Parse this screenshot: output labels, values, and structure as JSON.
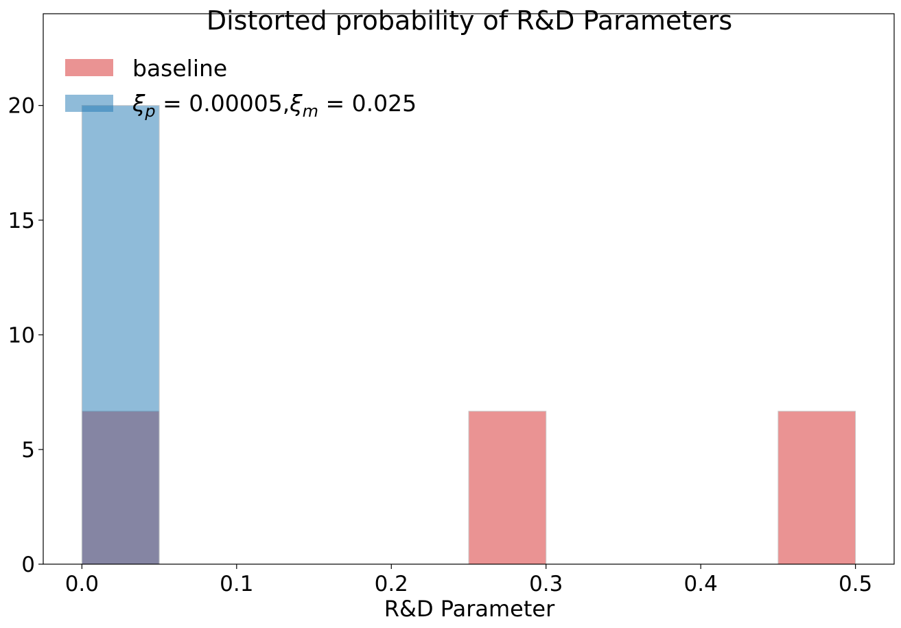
{
  "chart_data": {
    "type": "bar",
    "title": "Distorted probability of R&D Parameters",
    "xlabel": "R&D Parameter",
    "ylabel": "",
    "xlim": [
      -0.025,
      0.525
    ],
    "ylim": [
      0,
      24
    ],
    "grid": false,
    "legend_position": "top-left",
    "x_ticks": [
      {
        "value": 0.0,
        "label": "0.0"
      },
      {
        "value": 0.1,
        "label": "0.1"
      },
      {
        "value": 0.2,
        "label": "0.2"
      },
      {
        "value": 0.3,
        "label": "0.3"
      },
      {
        "value": 0.4,
        "label": "0.4"
      },
      {
        "value": 0.5,
        "label": "0.5"
      }
    ],
    "y_ticks": [
      {
        "value": 0,
        "label": "0"
      },
      {
        "value": 5,
        "label": "5"
      },
      {
        "value": 10,
        "label": "10"
      },
      {
        "value": 15,
        "label": "15"
      },
      {
        "value": 20,
        "label": "20"
      }
    ],
    "series": [
      {
        "name": "baseline",
        "color": "#d62728",
        "opacity": 0.5,
        "bins": [
          {
            "x0": 0.0,
            "x1": 0.05,
            "value": 6.67
          },
          {
            "x0": 0.25,
            "x1": 0.3,
            "value": 6.67
          },
          {
            "x0": 0.45,
            "x1": 0.5,
            "value": 6.67
          }
        ]
      },
      {
        "name_parts": [
          "ξ",
          "p",
          " = 0.00005,",
          "ξ",
          "m",
          " = 0.025"
        ],
        "color": "#1f77b4",
        "opacity": 0.5,
        "bins": [
          {
            "x0": 0.0,
            "x1": 0.05,
            "value": 20
          }
        ]
      }
    ]
  }
}
